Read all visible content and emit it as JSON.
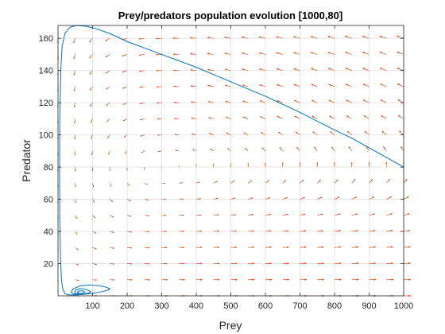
{
  "chart_data": {
    "type": "line",
    "title": "Prey/predators population evolution [1000,80]",
    "xlabel": "Prey",
    "ylabel": "Predator",
    "xlim": [
      0,
      1000
    ],
    "ylim": [
      0,
      168
    ],
    "xticks": [
      100,
      200,
      300,
      400,
      500,
      600,
      700,
      800,
      900,
      1000
    ],
    "yticks": [
      20,
      40,
      60,
      80,
      100,
      120,
      140,
      160
    ],
    "grid": true,
    "colors": {
      "trajectory": "#0072bd",
      "quiver": "#d95319",
      "grid": "#e6e6e6",
      "axis": "#262626"
    },
    "series": [
      {
        "type": "line",
        "x": [
          1000,
          950,
          900,
          850,
          800,
          700,
          600,
          500,
          400,
          300,
          200,
          150,
          110,
          80,
          55,
          35,
          20,
          12,
          8,
          6,
          5,
          4.5,
          5,
          7,
          10,
          14,
          20,
          28,
          40,
          55,
          75,
          100,
          125,
          145,
          150,
          140,
          120,
          90,
          65,
          45,
          38,
          45,
          65,
          85,
          95,
          85,
          65,
          50,
          48,
          58,
          70,
          78,
          70,
          58,
          56,
          62
        ],
        "y": [
          80,
          86,
          92,
          98,
          103,
          114,
          124,
          133,
          142,
          150,
          158,
          163,
          166,
          167.5,
          168,
          167,
          163,
          155,
          140,
          120,
          105,
          80,
          50,
          25,
          10,
          4,
          1.5,
          0.6,
          0.5,
          0.6,
          0.9,
          1.5,
          2.5,
          3.5,
          4.3,
          5.3,
          6.3,
          6.8,
          6.2,
          4.5,
          2.5,
          1,
          0.9,
          1.5,
          2.5,
          3.8,
          4.5,
          3.5,
          1.5,
          1.2,
          1.6,
          2.3,
          3.2,
          2.8,
          1.8,
          2
        ]
      }
    ]
  }
}
